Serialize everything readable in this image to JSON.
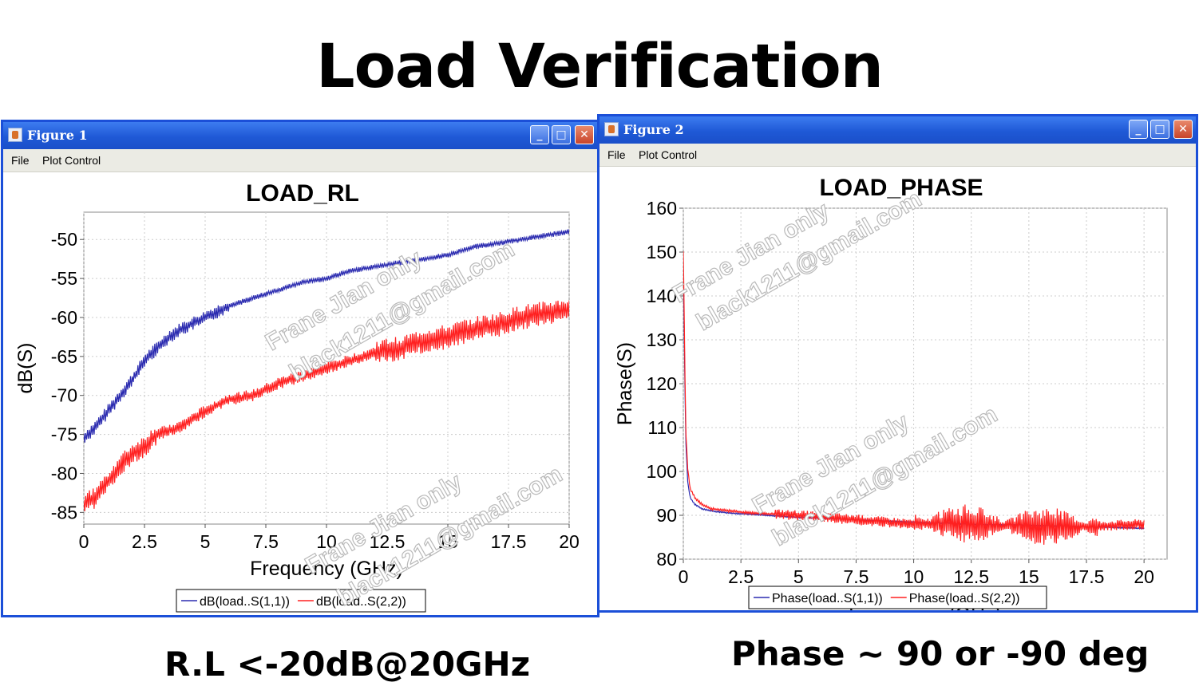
{
  "slide": {
    "title": "Load Verification",
    "caption_left": "R.L <-20dB@20GHz",
    "caption_right": "Phase ~ 90 or -90 deg"
  },
  "window1": {
    "title": "Figure 1",
    "menu": [
      "File",
      "Plot Control"
    ]
  },
  "window2": {
    "title": "Figure 2",
    "menu": [
      "File",
      "Plot Control"
    ]
  },
  "watermark": {
    "line1": "Frane Jian only",
    "line2": "black1211@gmail.com"
  },
  "colors": {
    "series1": "#2b2bb0",
    "series2": "#ff2020",
    "titlebar": "#1f59d6"
  },
  "chart_data": [
    {
      "type": "line",
      "title": "LOAD_RL",
      "xlabel": "Frequency (GHz)",
      "ylabel": "dB(S)",
      "xlim": [
        0,
        20
      ],
      "ylim": [
        -86.5,
        -46.5
      ],
      "xticks": [
        0,
        2.5,
        5,
        7.5,
        10,
        12.5,
        15,
        17.5,
        20
      ],
      "xticklabels": [
        "0",
        "2.5",
        "5",
        "7.5",
        "10",
        "12.5",
        "15",
        "17.5",
        "20"
      ],
      "yticks": [
        -50,
        -55,
        -60,
        -65,
        -70,
        -75,
        -80,
        -85
      ],
      "yticklabels": [
        "-50",
        "-55",
        "-60",
        "-65",
        "-70",
        "-75",
        "-80",
        "-85"
      ],
      "grid": true,
      "legend": "bottom-center",
      "series": [
        {
          "name": "dB(load..S(1,1))",
          "color": "#2b2bb0",
          "x": [
            0,
            0.5,
            1,
            1.5,
            2,
            2.5,
            3,
            3.5,
            4,
            5,
            6,
            7,
            8,
            9,
            10,
            11,
            12,
            13,
            14,
            15,
            16,
            17,
            18,
            19,
            20
          ],
          "y": [
            -75.5,
            -74,
            -72,
            -70,
            -68,
            -65.5,
            -64,
            -62.5,
            -61.5,
            -60,
            -58.5,
            -57.5,
            -56.5,
            -55.5,
            -55,
            -54,
            -53.5,
            -53,
            -52.5,
            -52,
            -51,
            -50.5,
            -50,
            -49.5,
            -49
          ]
        },
        {
          "name": "dB(load..S(2,2))",
          "color": "#ff2020",
          "x": [
            0,
            0.5,
            1,
            1.5,
            2,
            2.5,
            3,
            4,
            5,
            6,
            7,
            8,
            9,
            10,
            11,
            12,
            13,
            14,
            15,
            16,
            17,
            18,
            19,
            20
          ],
          "y": [
            -84,
            -83,
            -81,
            -79,
            -77.5,
            -76.5,
            -75,
            -74,
            -72,
            -70.5,
            -70,
            -68.5,
            -67.5,
            -66.5,
            -65.5,
            -64.5,
            -64,
            -63,
            -62.5,
            -61.5,
            -61,
            -60,
            -59.5,
            -59
          ]
        }
      ]
    },
    {
      "type": "line",
      "title": "LOAD_PHASE",
      "xlabel": "Frequency (GHz)",
      "ylabel": "Phase(S)",
      "xlim": [
        0,
        21
      ],
      "ylim": [
        80,
        160
      ],
      "xticks": [
        0,
        2.5,
        5,
        7.5,
        10,
        12.5,
        15,
        17.5,
        20
      ],
      "xticklabels": [
        "0",
        "2.5",
        "5",
        "7.5",
        "10",
        "12.5",
        "15",
        "17.5",
        "20"
      ],
      "yticks": [
        80,
        90,
        100,
        110,
        120,
        130,
        140,
        150,
        160
      ],
      "yticklabels": [
        "80",
        "90",
        "100",
        "110",
        "120",
        "130",
        "140",
        "150",
        "160"
      ],
      "grid": true,
      "legend": "bottom-center",
      "series": [
        {
          "name": "Phase(load..S(1,1))",
          "color": "#2b2bb0",
          "x": [
            0,
            0.05,
            0.1,
            0.2,
            0.3,
            0.5,
            0.8,
            1.2,
            2,
            3,
            5,
            7.5,
            10,
            12.5,
            15,
            17.5,
            20
          ],
          "y": [
            146,
            128,
            108,
            97,
            94,
            92.5,
            91.5,
            91,
            90.5,
            90.2,
            89.5,
            89,
            88.5,
            88,
            87.8,
            87.4,
            87
          ]
        },
        {
          "name": "Phase(load..S(2,2))",
          "color": "#ff2020",
          "x": [
            0,
            0.05,
            0.1,
            0.2,
            0.3,
            0.5,
            0.8,
            1.2,
            2,
            3,
            5,
            7.5,
            10,
            12.5,
            15,
            17.5,
            20
          ],
          "y": [
            150,
            132,
            110,
            100,
            96,
            94,
            92.5,
            91.5,
            91,
            90.5,
            90,
            89,
            88,
            88,
            87.5,
            87.5,
            88
          ]
        }
      ]
    }
  ]
}
